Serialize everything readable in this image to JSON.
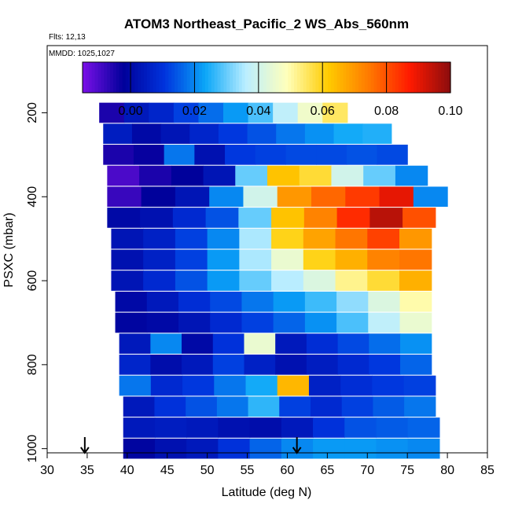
{
  "chart_data": {
    "type": "heatmap",
    "title": "ATOM3 Northeast_Pacific_2 WS_Abs_560nm",
    "flights_note": "Flts: 12,13",
    "dates_note": "MMDD: 1025,1027",
    "xlabel": "Latitude (deg N)",
    "ylabel": "PSXC (mbar)",
    "xlim": [
      30,
      85
    ],
    "ylim": [
      1010,
      40
    ],
    "y_reversed": true,
    "x_ticks": [
      "30",
      "35",
      "40",
      "45",
      "50",
      "55",
      "60",
      "65",
      "70",
      "75",
      "80",
      "85"
    ],
    "y_ticks": [
      "200",
      "400",
      "600",
      "800",
      "1000"
    ],
    "colorbar": {
      "range": [
        -0.015,
        0.1
      ],
      "ticks": [
        "0.00",
        "0.02",
        "0.04",
        "0.06",
        "0.08",
        "0.10"
      ],
      "colors": [
        "#7b10e8",
        "#00009a",
        "#0033dd",
        "#0aa6f8",
        "#bbeeff",
        "#ffffbb",
        "#ffcc00",
        "#ff7a00",
        "#ff1a00",
        "#8b0d0d"
      ]
    },
    "arrows_latitude": [
      34.7,
      61.2
    ],
    "level_step_mbar": 50,
    "rows": [
      {
        "p": 200,
        "lat_start": 36.5,
        "lat_end": 67.5,
        "values": [
          -0.005,
          0.004,
          0.007,
          0.012,
          0.017,
          0.022,
          0.028,
          0.037,
          0.046,
          0.055
        ]
      },
      {
        "p": 250,
        "lat_start": 37.0,
        "lat_end": 73.0,
        "values": [
          0.005,
          0.0,
          0.003,
          0.007,
          0.011,
          0.014,
          0.018,
          0.021,
          0.024,
          0.025
        ]
      },
      {
        "p": 300,
        "lat_start": 37.0,
        "lat_end": 75.0,
        "values": [
          -0.005,
          -0.003,
          0.018,
          0.002,
          0.011,
          0.012,
          0.013,
          0.013,
          0.014,
          0.013
        ]
      },
      {
        "p": 350,
        "lat_start": 37.5,
        "lat_end": 77.5,
        "values": [
          -0.01,
          -0.005,
          -0.002,
          0.003,
          0.03,
          0.063,
          0.058,
          0.04,
          0.03,
          0.02
        ]
      },
      {
        "p": 400,
        "lat_start": 37.5,
        "lat_end": 80.0,
        "values": [
          -0.008,
          -0.002,
          0.003,
          0.02,
          0.04,
          0.07,
          0.077,
          0.083,
          0.09,
          0.02
        ]
      },
      {
        "p": 450,
        "lat_start": 37.5,
        "lat_end": 78.5,
        "values": [
          0.0,
          0.002,
          0.008,
          0.014,
          0.03,
          0.063,
          0.073,
          0.085,
          0.095,
          0.08
        ]
      },
      {
        "p": 500,
        "lat_start": 38.0,
        "lat_end": 78.0,
        "values": [
          0.003,
          0.006,
          0.012,
          0.02,
          0.035,
          0.06,
          0.068,
          0.075,
          0.082,
          0.07
        ]
      },
      {
        "p": 550,
        "lat_start": 38.0,
        "lat_end": 78.0,
        "values": [
          0.002,
          0.006,
          0.012,
          0.022,
          0.035,
          0.045,
          0.06,
          0.066,
          0.073,
          0.075
        ]
      },
      {
        "p": 600,
        "lat_start": 38.0,
        "lat_end": 78.0,
        "values": [
          0.003,
          0.008,
          0.014,
          0.022,
          0.03,
          0.036,
          0.042,
          0.052,
          0.058,
          0.066
        ]
      },
      {
        "p": 650,
        "lat_start": 38.5,
        "lat_end": 78.0,
        "values": [
          0.0,
          0.004,
          0.009,
          0.013,
          0.018,
          0.022,
          0.027,
          0.033,
          0.042,
          0.05
        ]
      },
      {
        "p": 700,
        "lat_start": 38.5,
        "lat_end": 78.0,
        "values": [
          -0.001,
          0.0,
          0.003,
          0.008,
          0.012,
          0.016,
          0.021,
          0.028,
          0.037,
          0.045
        ]
      },
      {
        "p": 750,
        "lat_start": 39.0,
        "lat_end": 78.0,
        "values": [
          0.004,
          0.02,
          0.0,
          0.01,
          0.045,
          0.004,
          0.009,
          0.013,
          0.017,
          0.021
        ]
      },
      {
        "p": 800,
        "lat_start": 39.0,
        "lat_end": 78.0,
        "values": [
          0.007,
          0.001,
          0.004,
          0.012,
          0.006,
          0.002,
          0.005,
          0.008,
          0.011,
          0.016
        ]
      },
      {
        "p": 850,
        "lat_start": 39.0,
        "lat_end": 78.5,
        "values": [
          0.018,
          0.008,
          0.011,
          0.018,
          0.024,
          0.065,
          0.006,
          0.009,
          0.011,
          0.012
        ]
      },
      {
        "p": 900,
        "lat_start": 39.5,
        "lat_end": 78.5,
        "values": [
          0.004,
          0.01,
          0.014,
          0.018,
          0.026,
          0.012,
          0.008,
          0.012,
          0.015,
          0.018
        ]
      },
      {
        "p": 950,
        "lat_start": 39.5,
        "lat_end": 79.0,
        "values": [
          0.004,
          0.005,
          0.004,
          0.002,
          0.001,
          0.004,
          0.01,
          0.014,
          0.015,
          0.016
        ]
      },
      {
        "p": 1000,
        "lat_start": 39.5,
        "lat_end": 79.0,
        "values": [
          -0.001,
          0.002,
          0.004,
          0.01,
          0.016,
          0.02,
          0.022,
          0.022,
          0.021,
          0.02
        ]
      }
    ]
  }
}
